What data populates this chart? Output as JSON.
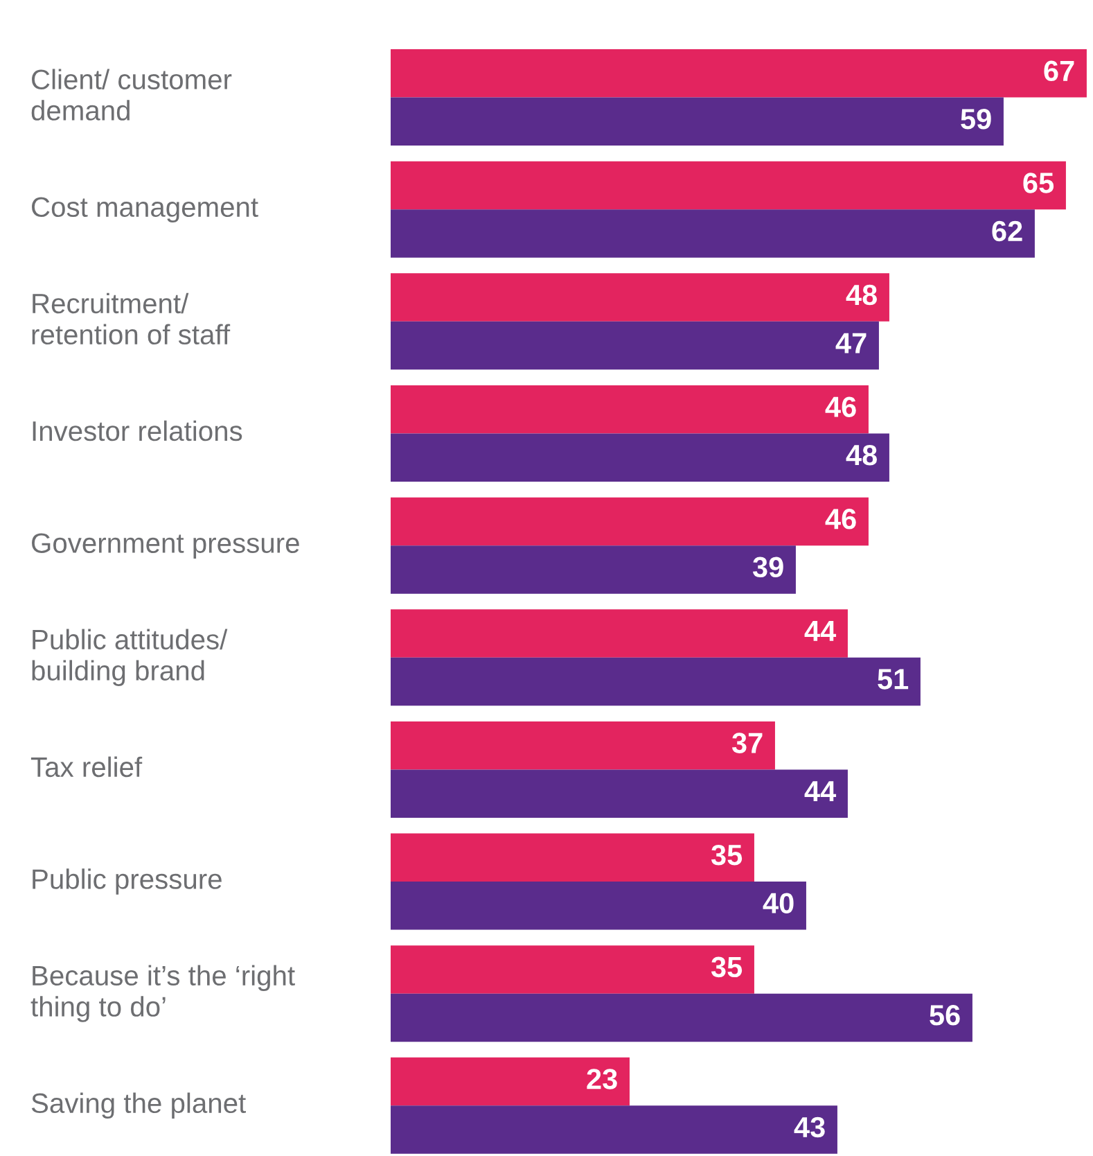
{
  "chart_data": {
    "type": "bar",
    "orientation": "horizontal",
    "categories": [
      "Client/ customer\ndemand",
      "Cost management",
      "Recruitment/\nretention of staff",
      "Investor relations",
      "Government pressure",
      "Public attitudes/\nbuilding brand",
      "Tax relief",
      "Public pressure",
      "Because it’s the ‘right\nthing to do’",
      "Saving the planet"
    ],
    "series": [
      {
        "color": "#e3245f",
        "values": [
          67,
          65,
          48,
          46,
          46,
          44,
          37,
          35,
          35,
          23
        ]
      },
      {
        "color": "#5a2c8c",
        "values": [
          59,
          62,
          47,
          48,
          39,
          51,
          44,
          40,
          56,
          43
        ]
      }
    ],
    "data_labels": true
  }
}
